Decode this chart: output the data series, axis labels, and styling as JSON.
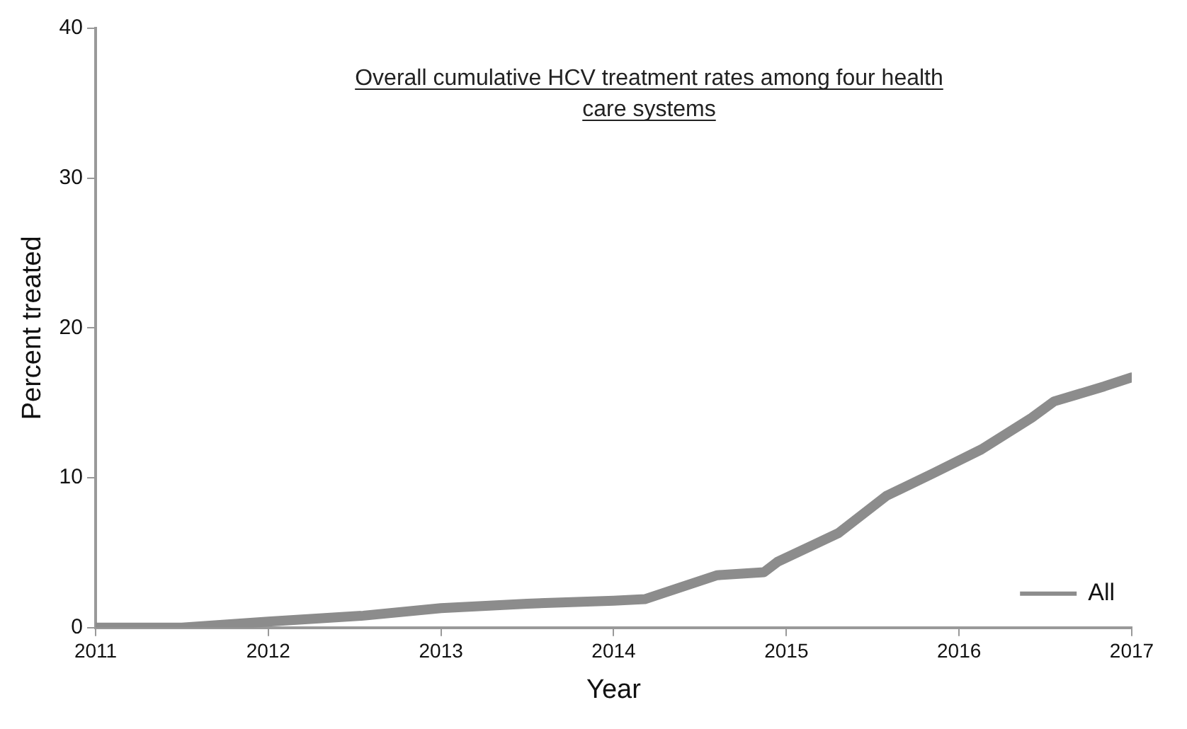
{
  "chart_data": {
    "type": "line",
    "title": "Overall cumulative HCV treatment rates among four health care systems",
    "xlabel": "Year",
    "ylabel": "Percent treated",
    "x": [
      2011,
      2011.5,
      2012,
      2012.55,
      2013,
      2013.5,
      2014,
      2014.18,
      2014.6,
      2014.87,
      2014.95,
      2015.3,
      2015.58,
      2015.85,
      2016.13,
      2016.42,
      2016.55,
      2016.84,
      2017
    ],
    "series": [
      {
        "name": "All",
        "color": "#8c8c8c",
        "values": [
          0,
          0,
          0.4,
          0.8,
          1.3,
          1.6,
          1.8,
          1.9,
          3.5,
          3.7,
          4.4,
          6.3,
          8.8,
          10.3,
          11.9,
          14,
          15.1,
          16.1,
          16.7
        ]
      }
    ],
    "xlim": [
      2011,
      2017
    ],
    "xticks": [
      2011,
      2012,
      2013,
      2014,
      2015,
      2016,
      2017
    ],
    "ylim": [
      0,
      40
    ],
    "yticks": [
      0,
      10,
      20,
      30,
      40
    ],
    "grid": false,
    "legend": "bottom right",
    "line_style": "solid"
  }
}
